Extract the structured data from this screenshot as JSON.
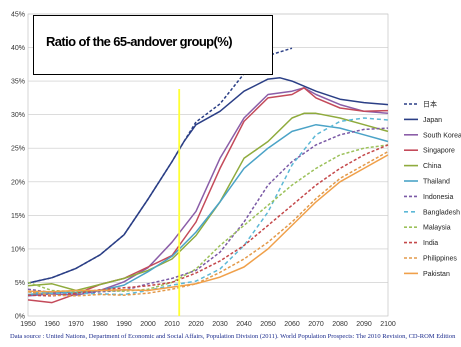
{
  "chart_data": {
    "type": "line",
    "title": "Ratio of the 65-andover group(%)",
    "x_ticks": [
      "1950",
      "1960",
      "1970",
      "1980",
      "1990",
      "2000",
      "2010",
      "2020",
      "2030",
      "2040",
      "2050",
      "2060",
      "2070",
      "2080",
      "2090",
      "2100"
    ],
    "y_ticks": [
      "0%",
      "5%",
      "10%",
      "15%",
      "20%",
      "25%",
      "30%",
      "35%",
      "40%",
      "45%"
    ],
    "xlim": [
      1950,
      2100
    ],
    "ylim": [
      0,
      45
    ],
    "marker_line_x": 2013,
    "marker_line_color": "#ffff33",
    "grid": "horizontal",
    "legend_position": "right",
    "series": [
      {
        "name": "日本",
        "color": "#2b3f86",
        "dash": "3,2",
        "x": [
          1950,
          1960,
          1970,
          1980,
          1990,
          2000,
          2010,
          2015,
          2020,
          2030,
          2040,
          2050,
          2060
        ],
        "y": [
          4.9,
          5.7,
          7.1,
          9.1,
          12.1,
          17.4,
          23.0,
          26.0,
          28.9,
          31.6,
          36.1,
          38.8,
          39.9
        ]
      },
      {
        "name": "Japan",
        "color": "#2b3f86",
        "dash": "",
        "x": [
          1950,
          1960,
          1970,
          1980,
          1990,
          2000,
          2010,
          2015,
          2020,
          2030,
          2040,
          2050,
          2055,
          2060,
          2070,
          2080,
          2090,
          2100
        ],
        "y": [
          4.9,
          5.7,
          7.1,
          9.1,
          12.1,
          17.4,
          23.0,
          26.0,
          28.5,
          30.5,
          33.5,
          35.3,
          35.5,
          35.0,
          33.5,
          32.3,
          31.8,
          31.5
        ]
      },
      {
        "name": "South Korea",
        "color": "#8b5ea8",
        "dash": "",
        "x": [
          1950,
          1960,
          1970,
          1980,
          1990,
          2000,
          2010,
          2020,
          2030,
          2040,
          2050,
          2060,
          2065,
          2070,
          2080,
          2090,
          2100
        ],
        "y": [
          3.0,
          3.3,
          3.1,
          3.8,
          5.1,
          7.2,
          11.0,
          15.6,
          23.5,
          29.5,
          33.0,
          33.5,
          34.0,
          33.0,
          31.5,
          30.5,
          30.2
        ]
      },
      {
        "name": "Singapore",
        "color": "#c44a5a",
        "dash": "",
        "x": [
          1950,
          1960,
          1970,
          1980,
          1990,
          2000,
          2010,
          2020,
          2030,
          2040,
          2050,
          2060,
          2065,
          2070,
          2080,
          2090,
          2100
        ],
        "y": [
          2.4,
          2.0,
          3.3,
          4.7,
          5.6,
          7.3,
          9.0,
          14.0,
          22.0,
          29.0,
          32.5,
          33.0,
          34.0,
          32.5,
          31.0,
          30.5,
          30.6
        ]
      },
      {
        "name": "China",
        "color": "#8fab3d",
        "dash": "",
        "x": [
          1950,
          1960,
          1970,
          1980,
          1990,
          2000,
          2010,
          2020,
          2030,
          2040,
          2050,
          2060,
          2065,
          2070,
          2080,
          2090,
          2100
        ],
        "y": [
          4.5,
          4.8,
          3.8,
          4.7,
          5.6,
          6.8,
          8.5,
          12.0,
          17.0,
          23.5,
          26.0,
          29.5,
          30.2,
          30.2,
          29.5,
          28.5,
          27.5
        ]
      },
      {
        "name": "Thailand",
        "color": "#4ba3c7",
        "dash": "",
        "x": [
          1950,
          1960,
          1970,
          1980,
          1990,
          2000,
          2010,
          2020,
          2030,
          2040,
          2050,
          2060,
          2070,
          2080,
          2090,
          2100
        ],
        "y": [
          3.2,
          3.5,
          3.5,
          3.8,
          4.6,
          6.6,
          8.9,
          12.5,
          17.0,
          22.0,
          25.0,
          27.5,
          28.5,
          28.0,
          27.0,
          26.0
        ]
      },
      {
        "name": "Indonesia",
        "color": "#7b5aa6",
        "dash": "3,2",
        "x": [
          1950,
          1960,
          1970,
          1980,
          1990,
          2000,
          2010,
          2020,
          2030,
          2040,
          2050,
          2060,
          2070,
          2080,
          2090,
          2100
        ],
        "y": [
          4.0,
          3.5,
          3.3,
          3.6,
          3.8,
          4.8,
          5.6,
          6.8,
          9.5,
          14.0,
          19.5,
          23.0,
          25.5,
          27.0,
          27.8,
          28.0
        ]
      },
      {
        "name": "Bangladesh",
        "color": "#5cb8d6",
        "dash": "4,3",
        "x": [
          1950,
          1960,
          1970,
          1980,
          1990,
          2000,
          2010,
          2020,
          2030,
          2040,
          2050,
          2060,
          2070,
          2080,
          2090,
          2100
        ],
        "y": [
          3.6,
          3.4,
          3.4,
          3.3,
          3.2,
          3.8,
          4.6,
          5.2,
          7.0,
          10.5,
          15.5,
          22.5,
          27.0,
          29.0,
          29.5,
          29.2
        ]
      },
      {
        "name": "Malaysia",
        "color": "#9cc15a",
        "dash": "3,2",
        "x": [
          1950,
          1960,
          1970,
          1980,
          1990,
          2000,
          2010,
          2020,
          2030,
          2040,
          2050,
          2060,
          2070,
          2080,
          2090,
          2100
        ],
        "y": [
          5.0,
          3.8,
          3.6,
          3.8,
          3.7,
          4.0,
          5.0,
          7.0,
          10.5,
          13.5,
          16.5,
          19.5,
          22.0,
          24.0,
          25.0,
          25.5
        ]
      },
      {
        "name": "India",
        "color": "#c4484a",
        "dash": "3,2",
        "x": [
          1950,
          1960,
          1970,
          1980,
          1990,
          2000,
          2010,
          2020,
          2030,
          2040,
          2050,
          2060,
          2070,
          2080,
          2090,
          2100
        ],
        "y": [
          3.1,
          3.0,
          3.4,
          3.9,
          4.2,
          4.5,
          5.0,
          6.4,
          8.2,
          10.5,
          13.5,
          16.5,
          19.5,
          22.0,
          24.0,
          25.5
        ]
      },
      {
        "name": "Philippines",
        "color": "#e39a4a",
        "dash": "3,2",
        "x": [
          1950,
          1960,
          1970,
          1980,
          1990,
          2000,
          2010,
          2020,
          2030,
          2040,
          2050,
          2060,
          2070,
          2080,
          2090,
          2100
        ],
        "y": [
          3.6,
          3.1,
          3.0,
          3.2,
          3.1,
          3.4,
          4.0,
          4.8,
          6.5,
          8.5,
          11.0,
          14.0,
          17.5,
          20.5,
          22.5,
          24.5
        ]
      },
      {
        "name": "Pakistan",
        "color": "#f0a04a",
        "dash": "",
        "x": [
          1950,
          1960,
          1970,
          1980,
          1990,
          2000,
          2010,
          2020,
          2030,
          2040,
          2050,
          2060,
          2070,
          2080,
          2090,
          2100
        ],
        "y": [
          3.7,
          3.6,
          3.8,
          3.8,
          3.9,
          3.8,
          4.3,
          4.8,
          5.8,
          7.3,
          10.0,
          13.5,
          17.0,
          20.0,
          22.0,
          24.0
        ]
      }
    ]
  },
  "source_note": "Data source : United Nations, Department of Economic and Social Affairs, Population Division (2011). World Population Prospects: The 2010 Revision, CD-ROM Edition"
}
